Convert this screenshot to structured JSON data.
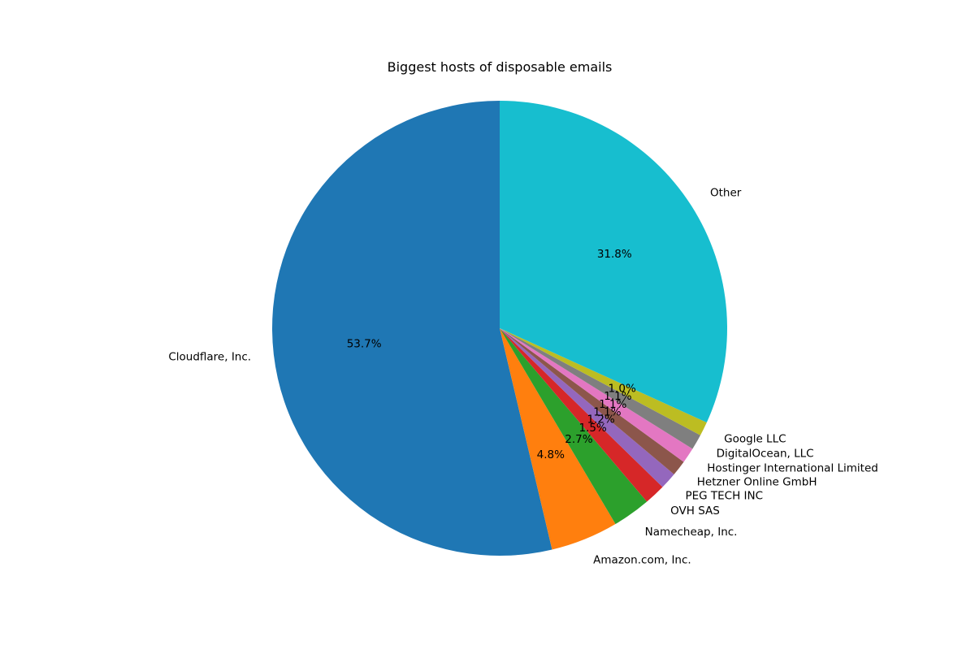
{
  "chart_data": {
    "type": "pie",
    "title": "Biggest hosts of disposable emails",
    "start_angle_deg": 90,
    "direction": "counterclockwise",
    "slices": [
      {
        "label": "Cloudflare, Inc.",
        "value": 53.7,
        "pct_label": "53.7%",
        "color": "#1f77b4"
      },
      {
        "label": "Amazon.com, Inc.",
        "value": 4.8,
        "pct_label": "4.8%",
        "color": "#ff7f0e"
      },
      {
        "label": "Namecheap, Inc.",
        "value": 2.7,
        "pct_label": "2.7%",
        "color": "#2ca02c"
      },
      {
        "label": "OVH SAS",
        "value": 1.5,
        "pct_label": "1.5%",
        "color": "#d62728"
      },
      {
        "label": "PEG TECH INC",
        "value": 1.2,
        "pct_label": "1.2%",
        "color": "#9467bd"
      },
      {
        "label": "Hetzner Online GmbH",
        "value": 1.1,
        "pct_label": "1.1%",
        "color": "#8c564b"
      },
      {
        "label": "Hostinger International Limited",
        "value": 1.1,
        "pct_label": "1.1%",
        "color": "#e377c2"
      },
      {
        "label": "DigitalOcean, LLC",
        "value": 1.1,
        "pct_label": "1.1%",
        "color": "#7f7f7f"
      },
      {
        "label": "Google LLC",
        "value": 1.0,
        "pct_label": "1.0%",
        "color": "#bcbd22"
      },
      {
        "label": "Other",
        "value": 31.8,
        "pct_label": "31.8%",
        "color": "#17becf"
      }
    ]
  }
}
